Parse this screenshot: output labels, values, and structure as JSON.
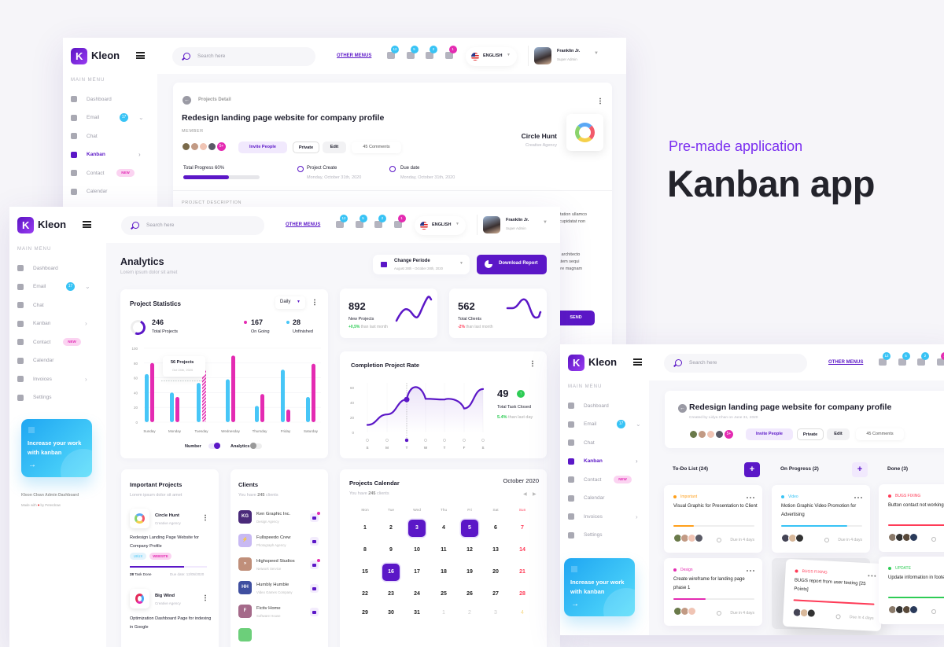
{
  "hero": {
    "subtitle": "Pre-made application",
    "title": "Kanban app"
  },
  "brand": {
    "name": "Kleon"
  },
  "colors": {
    "primary": "#5b17c7",
    "pink": "#e42bb2",
    "blue": "#38c3f5",
    "green": "#2ecc55",
    "red": "#ff3b57",
    "orange": "#ff9f1a"
  },
  "sidebar": {
    "section": "MAIN MENU",
    "items": [
      {
        "label": "Dashboard",
        "icon": "dashboard-icon"
      },
      {
        "label": "Email",
        "icon": "mail-icon",
        "badge": "17",
        "chevron": true
      },
      {
        "label": "Chat",
        "icon": "chat-icon"
      },
      {
        "label": "Kanban",
        "icon": "kanban-icon",
        "chevron": true
      },
      {
        "label": "Contact",
        "icon": "contact-icon",
        "tag": "NEW"
      },
      {
        "label": "Calendar",
        "icon": "calendar-icon"
      },
      {
        "label": "Invoices",
        "icon": "invoice-icon",
        "chevron": true
      },
      {
        "label": "Settings",
        "icon": "gear-icon"
      }
    ],
    "promo": "Increase your work with kanban",
    "footer_title": "Kleon Clean Admin Dashboard",
    "footer_made": "Made with",
    "footer_by": "by Peterdraw"
  },
  "topbar": {
    "search_placeholder": "Search here",
    "other_menus": "OTHER MENUS",
    "notifications": [
      {
        "icon": "bell-icon",
        "count": "12"
      },
      {
        "icon": "gift-icon",
        "count": "5"
      },
      {
        "icon": "chat-bubble-icon",
        "count": "2"
      },
      {
        "icon": "inbox-icon",
        "count": "1"
      }
    ],
    "language": "ENGLISH",
    "user": {
      "name": "Franklin Jr.",
      "role": "Super Admin"
    }
  },
  "project_detail": {
    "breadcrumb": "Projects Detail",
    "title": "Redesign landing page website for company profile",
    "member_label": "MEMBER",
    "more_members": "5+",
    "invite": "Invite People",
    "private": "Private",
    "edit": "Edit",
    "comments": "45 Comments",
    "client_name": "Circle Hunt",
    "client_type": "Creative Agency",
    "progress_label": "Total Progress 60%",
    "progress": 60,
    "create_label": "Project Create",
    "create_date": "Monday, October 31th, 2020",
    "due_label": "Due date",
    "due_date": "Monday, October 31th, 2020",
    "description_label": "PROJECT DESCRIPTION",
    "description_fragments": [
      "citation ullamco",
      "t cupidatat non",
      "si architecto",
      "tatem sequi",
      "lore magnam"
    ],
    "send": "SEND"
  },
  "analytics": {
    "title": "Analytics",
    "subtitle": "Lorem ipsum  dolor sit amet",
    "period_label": "Change Periode",
    "period_range": "August 28th - October 28th, 2020",
    "download": "Download Report",
    "stats": {
      "title": "Project Statistics",
      "filter": "Daily",
      "total": "246",
      "total_label": "Total Projects",
      "ongoing": "167",
      "ongoing_label": "On Going",
      "unfinished": "28",
      "unfinished_label": "Unfinished",
      "tooltip_value": "56 Projects",
      "tooltip_date": "Oct 24th, 2020",
      "legend_number": "Number",
      "legend_analytics": "Analytics"
    },
    "new_projects": {
      "value": "892",
      "label": "New Projects",
      "change": "+0,5%",
      "suffix": "than last month"
    },
    "total_clients": {
      "value": "562",
      "label": "Total Clients",
      "change": "-2%",
      "suffix": "than last month"
    },
    "completion": {
      "title": "Completion Project Rate",
      "value": "49",
      "label": "Total Task Closed",
      "change": "5.4%",
      "suffix": "than last day"
    },
    "important": {
      "title": "Important Projects",
      "subtitle": "Lorem ipsum dolor sit amet",
      "projects": [
        {
          "name": "Circle Hunt",
          "type": "Creative Agency",
          "desc": "Redesign Landing Page Website for Company Profile",
          "tags": [
            "UI/UX",
            "WEBSITE"
          ],
          "progress": 70,
          "done": "28",
          "done_label": "Task Done",
          "due": "Due date: 12/05/2020"
        },
        {
          "name": "Big Wind",
          "type": "Creative Agency",
          "desc": "Optimization Dashboard Page for indexing in Google"
        }
      ]
    },
    "clients": {
      "title": "Clients",
      "subtitle_pre": "You have",
      "count": "245",
      "subtitle_post": "clients",
      "list": [
        {
          "initials": "KG",
          "name": "Ken Graphic Inc.",
          "type": "Design Agency",
          "color": "#4a2a7a",
          "unread": true
        },
        {
          "initials": "⚡",
          "name": "Fullspeedo Crew",
          "type": "Photograph Agency",
          "color": "#c8b9f3",
          "unread": false
        },
        {
          "initials": "»",
          "name": "Highspeed Studios",
          "type": "Network Service",
          "color": "#c08f7a",
          "unread": true
        },
        {
          "initials": "HH",
          "name": "Humbly Humble",
          "type": "Video Games Company",
          "color": "#3f4fa0",
          "unread": false
        },
        {
          "initials": "F",
          "name": "Fictiv Home",
          "type": "Software House",
          "color": "#a56a8a",
          "unread": false
        }
      ]
    },
    "calendar": {
      "title": "Projects Calendar",
      "month": "October 2020",
      "subtitle_pre": "You have",
      "count": "245",
      "subtitle_post": "clients",
      "weekdays": [
        "Mon",
        "Tue",
        "Wed",
        "Thu",
        "Fri",
        "Sat",
        "Sun"
      ],
      "days": [
        "1",
        "2",
        "3",
        "4",
        "5",
        "6",
        "7",
        "8",
        "9",
        "10",
        "11",
        "12",
        "13",
        "14",
        "15",
        "16",
        "17",
        "18",
        "19",
        "20",
        "21",
        "22",
        "23",
        "24",
        "25",
        "26",
        "27",
        "28",
        "29",
        "30",
        "31"
      ],
      "next_days": [
        "1",
        "2",
        "3",
        "4"
      ],
      "highlighted": [
        "3",
        "5",
        "16"
      ],
      "event_dot": "16"
    }
  },
  "kanban": {
    "title": "Redesign landing page website for company profile",
    "created": "Created by Lidya Chan on June 31, 2020",
    "more_members": "5+",
    "invite": "Invite People",
    "private": "Private",
    "edit": "Edit",
    "comments": "45 Comments",
    "columns": [
      {
        "title": "To-Do List (24)",
        "cards": [
          {
            "tag": "Important",
            "tag_color": "#ff9f1a",
            "title": "Visual Graphic for Presentation to Client",
            "progress": 25,
            "due": "Due in 4 days"
          },
          {
            "tag": "Design",
            "tag_color": "#e42bb2",
            "title": "Create wireframe for landing page phase 1",
            "progress": 40,
            "due": "Due in 4 days"
          }
        ]
      },
      {
        "title": "On Progress (2)",
        "cards": [
          {
            "tag": "Video",
            "tag_color": "#38c3f5",
            "title": "Motion Graphic Video Promotion for Advertising",
            "progress": 82,
            "due": "Due in 4 days"
          },
          {
            "tag": "BUGS FIXING",
            "tag_color": "#ff3b57",
            "title": "BUGS report from user testing [25 Points]",
            "progress": 100,
            "due": "Due in 4 days"
          }
        ]
      },
      {
        "title": "Done (3)",
        "cards": [
          {
            "tag": "BUGS FIXING",
            "tag_color": "#ff3b57",
            "title": "Button contact not working clikced",
            "progress": 100,
            "due": "Due in 4 days"
          },
          {
            "tag": "UPDATE",
            "tag_color": "#2ecc55",
            "title": "Update information in footer",
            "progress": 100,
            "due": "Due in 4 days"
          }
        ]
      }
    ]
  },
  "chart_data": [
    {
      "type": "bar",
      "title": "Project Statistics",
      "categories": [
        "Sunday",
        "Monday",
        "Tuesday",
        "Wednesday",
        "Thursday",
        "Friday",
        "Saturday"
      ],
      "series": [
        {
          "values": [
            65,
            40,
            53,
            58,
            22,
            71,
            34
          ],
          "color": "#47c6f7"
        },
        {
          "values": [
            80,
            34,
            72,
            90,
            38,
            17,
            79
          ],
          "color": "#e42bb2"
        }
      ],
      "ylim": [
        0,
        100
      ],
      "yticks": [
        "0",
        "20",
        "40",
        "60",
        "80",
        "100"
      ],
      "grid": true
    },
    {
      "type": "area",
      "title": "Completion Project Rate",
      "categories": [
        "S",
        "M",
        "T",
        "W",
        "T",
        "F",
        "S"
      ],
      "values": [
        10,
        24,
        44,
        45,
        44,
        32,
        58
      ],
      "highlight_index": 2,
      "ylim": [
        0,
        60
      ],
      "yticks": [
        "0",
        "20",
        "40",
        "60"
      ]
    }
  ]
}
